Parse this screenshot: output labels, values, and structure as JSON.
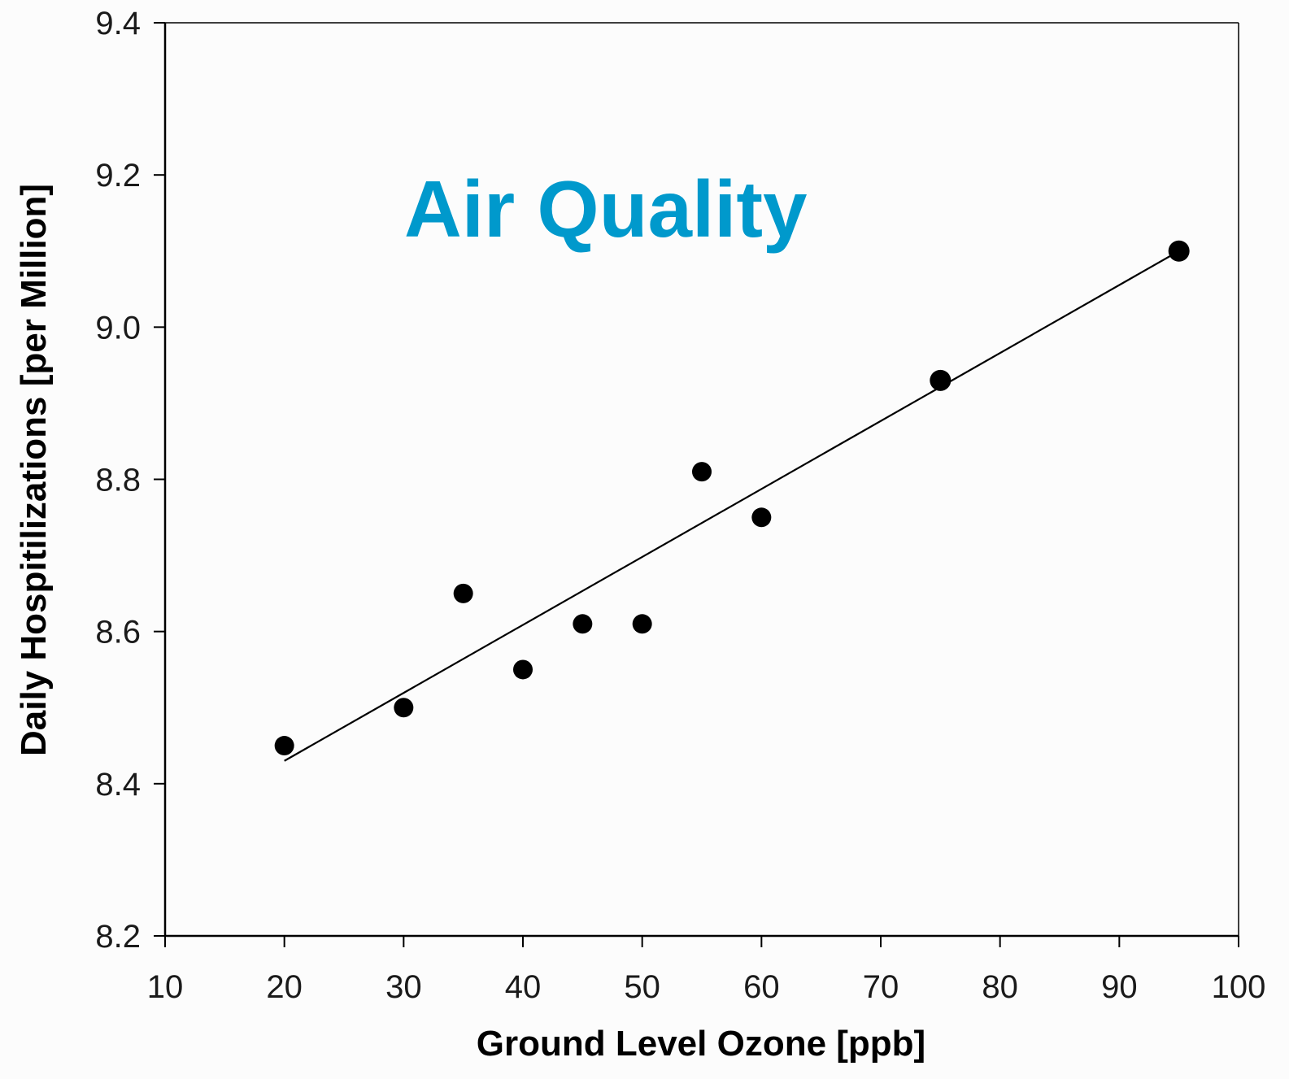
{
  "chart_data": {
    "type": "scatter",
    "title": "",
    "xlabel": "Ground Level Ozone [ppb]",
    "ylabel": "Daily Hospitilizations [per Million]",
    "xlim": [
      10,
      100
    ],
    "ylim": [
      8.2,
      9.4
    ],
    "x_ticks": [
      "10",
      "20",
      "30",
      "40",
      "50",
      "60",
      "70",
      "80",
      "90",
      "100"
    ],
    "y_ticks": [
      "8.2",
      "8.4",
      "8.6",
      "8.8",
      "9.0",
      "9.2",
      "9.4"
    ],
    "grid": false,
    "legend": "none",
    "points": [
      {
        "x": 20,
        "y": 8.45
      },
      {
        "x": 30,
        "y": 8.5
      },
      {
        "x": 35,
        "y": 8.65
      },
      {
        "x": 40,
        "y": 8.55
      },
      {
        "x": 45,
        "y": 8.61
      },
      {
        "x": 50,
        "y": 8.61
      },
      {
        "x": 55,
        "y": 8.81
      },
      {
        "x": 60,
        "y": 8.75
      },
      {
        "x": 75,
        "y": 8.93
      },
      {
        "x": 95,
        "y": 9.1
      }
    ],
    "trendline": {
      "x": [
        20,
        95
      ],
      "y": [
        8.43,
        9.1
      ]
    },
    "annotation": {
      "text": "Air Quality",
      "color": "#0099cc"
    },
    "marker_color": "#000000",
    "line_color": "#000000"
  }
}
